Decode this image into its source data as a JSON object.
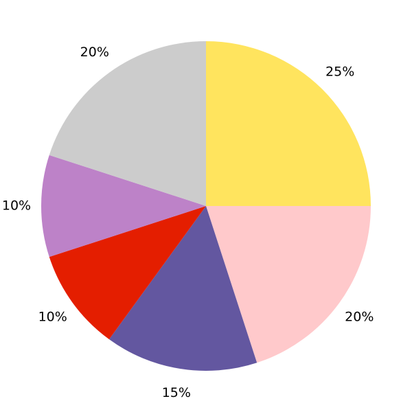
{
  "chart_data": {
    "type": "pie",
    "values": [
      25,
      20,
      15,
      10,
      10,
      20
    ],
    "value_labels": [
      "25%",
      "20%",
      "15%",
      "10%",
      "10%",
      "20%"
    ],
    "colors": [
      "#ffe45e",
      "#ffc9cb",
      "#6357a0",
      "#e41e00",
      "#bd82c8",
      "#cccccc"
    ],
    "start": "top",
    "direction": "clockwise"
  }
}
